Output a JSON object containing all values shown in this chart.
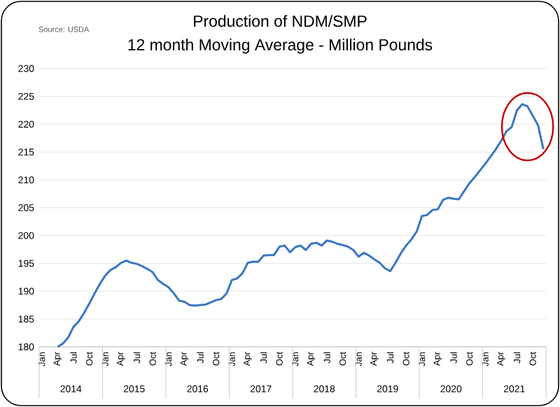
{
  "chart_data": {
    "type": "line",
    "title": "Production of NDM/SMP",
    "subtitle": "12 month Moving Average - Million Pounds",
    "annotations": [
      "Source: USDA",
      "2014",
      "2015",
      "2016",
      "2017",
      "2018",
      "2019",
      "2020",
      "2021"
    ],
    "categories": [
      "Jan",
      null,
      null,
      "Apr",
      null,
      null,
      "Jul",
      null,
      null,
      "Oct",
      null,
      null,
      "Jan",
      null,
      null,
      "Apr",
      null,
      null,
      "Jul",
      null,
      null,
      "Oct",
      null,
      null,
      "Jan",
      null,
      null,
      "Apr",
      null,
      null,
      "Jul",
      null,
      null,
      "Oct",
      null,
      null,
      "Jan",
      null,
      null,
      "Apr",
      null,
      null,
      "Jul",
      null,
      null,
      "Oct",
      null,
      null,
      "Jan",
      null,
      null,
      "Apr",
      null,
      null,
      "Jul",
      null,
      null,
      "Oct",
      null,
      null,
      "Jan",
      null,
      null,
      "Apr",
      null,
      null,
      "Jul",
      null,
      null,
      "Oct",
      null,
      null,
      "Jan",
      null,
      null,
      "Apr",
      null,
      null,
      "Jul",
      null,
      null,
      "Oct",
      null,
      null,
      "Jan",
      null,
      null,
      "Apr",
      null,
      null,
      "Jul",
      null,
      null,
      "Oct",
      null,
      null
    ],
    "series": [
      {
        "color": "#3a76c4",
        "values": [
          null,
          null,
          null,
          180,
          180.6,
          181.7,
          183.6,
          184.6,
          186.1,
          187.8,
          189.6,
          191.3,
          192.8,
          193.8,
          194.3,
          195.1,
          195.5,
          195.1,
          194.9,
          194.5,
          194,
          193.4,
          192,
          191.3,
          190.7,
          189.6,
          188.3,
          188.1,
          187.5,
          187.4,
          187.5,
          187.6,
          188,
          188.4,
          188.6,
          189.6,
          192,
          192.3,
          193.2,
          195.1,
          195.3,
          195.3,
          196.4,
          196.5,
          196.5,
          198,
          198.2,
          197,
          197.9,
          198.2,
          197.4,
          198.5,
          198.7,
          198.2,
          199.1,
          198.9,
          198.5,
          198.3,
          198,
          197.4,
          196.2,
          196.9,
          196.4,
          195.7,
          195.1,
          194.1,
          193.6,
          195.1,
          196.8,
          198.2,
          199.3,
          200.7,
          203.5,
          203.7,
          204.6,
          204.7,
          206.4,
          206.8,
          206.6,
          206.5,
          208,
          209.4,
          210.5,
          211.7,
          212.9,
          214.2,
          215.5,
          217,
          218.7,
          219.5,
          222.5,
          223.6,
          223.2,
          221.5,
          219.8,
          215.5
        ]
      }
    ],
    "ylim": [
      180,
      230
    ],
    "yticks": [
      180,
      185,
      190,
      195,
      200,
      205,
      210,
      215,
      220,
      225,
      230
    ],
    "grid": "y",
    "marker": "none",
    "line_style": "solid"
  }
}
